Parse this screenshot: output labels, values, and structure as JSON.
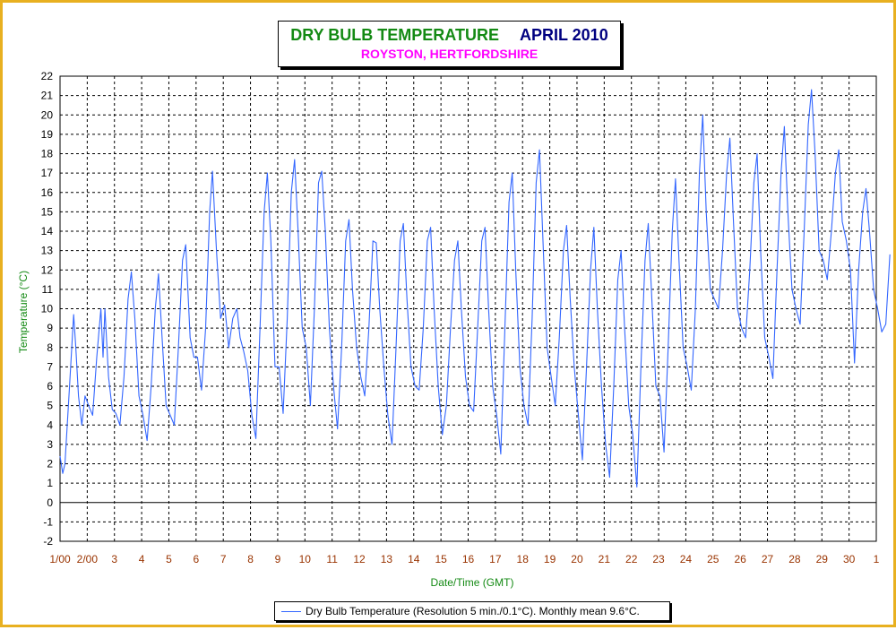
{
  "colors": {
    "frame": "#e8b020",
    "title": "#148a14",
    "period": "#000080",
    "subtitle": "#ff00ff",
    "axis_title": "#148a14",
    "x_tick": "#993300",
    "series": "#3366ff",
    "grid": "#000000"
  },
  "chart_data": {
    "type": "line",
    "title": "DRY BULB TEMPERATURE",
    "period": "APRIL 2010",
    "subtitle": "ROYSTON, HERTFORDSHIRE",
    "xlabel": "Date/Time (GMT)",
    "ylabel": "Temperature (°C)",
    "ylim": [
      -2,
      22
    ],
    "y_ticks": [
      -2,
      -1,
      0,
      1,
      2,
      3,
      4,
      5,
      6,
      7,
      8,
      9,
      10,
      11,
      12,
      13,
      14,
      15,
      16,
      17,
      18,
      19,
      20,
      21,
      22
    ],
    "x_ticks": [
      "1/00",
      "2/00",
      "3",
      "4",
      "5",
      "6",
      "7",
      "8",
      "9",
      "10",
      "11",
      "12",
      "13",
      "14",
      "15",
      "16",
      "17",
      "18",
      "19",
      "20",
      "21",
      "22",
      "23",
      "24",
      "25",
      "26",
      "27",
      "28",
      "29",
      "30",
      "1"
    ],
    "grid": true,
    "legend_position": "bottom-center",
    "series": [
      {
        "name": "Dry Bulb Temperature (Resolution 5 min./0.1°C). Monthly mean 9.6°C.",
        "x_unit": "days since 1 April 00:00 GMT",
        "points": [
          [
            0.0,
            2.4
          ],
          [
            0.1,
            1.5
          ],
          [
            0.18,
            2.0
          ],
          [
            0.35,
            6.0
          ],
          [
            0.5,
            9.7
          ],
          [
            0.58,
            8.0
          ],
          [
            0.68,
            5.5
          ],
          [
            0.8,
            4.0
          ],
          [
            0.92,
            5.5
          ],
          [
            1.05,
            5.0
          ],
          [
            1.2,
            4.5
          ],
          [
            1.35,
            7.5
          ],
          [
            1.5,
            10.0
          ],
          [
            1.58,
            7.5
          ],
          [
            1.65,
            10.0
          ],
          [
            1.78,
            6.5
          ],
          [
            1.92,
            4.8
          ],
          [
            2.05,
            4.6
          ],
          [
            2.2,
            4.0
          ],
          [
            2.35,
            6.5
          ],
          [
            2.5,
            10.5
          ],
          [
            2.62,
            11.9
          ],
          [
            2.75,
            9.5
          ],
          [
            2.9,
            5.5
          ],
          [
            3.05,
            4.5
          ],
          [
            3.2,
            3.2
          ],
          [
            3.35,
            6.0
          ],
          [
            3.5,
            10.0
          ],
          [
            3.62,
            11.8
          ],
          [
            3.75,
            8.5
          ],
          [
            3.9,
            5.0
          ],
          [
            4.05,
            4.5
          ],
          [
            4.2,
            4.0
          ],
          [
            4.35,
            8.0
          ],
          [
            4.5,
            12.5
          ],
          [
            4.62,
            13.3
          ],
          [
            4.78,
            8.5
          ],
          [
            4.92,
            7.5
          ],
          [
            5.05,
            7.5
          ],
          [
            5.2,
            5.8
          ],
          [
            5.35,
            9.0
          ],
          [
            5.5,
            15.0
          ],
          [
            5.6,
            17.1
          ],
          [
            5.75,
            13.0
          ],
          [
            5.9,
            9.5
          ],
          [
            6.05,
            10.2
          ],
          [
            6.2,
            8.0
          ],
          [
            6.35,
            9.5
          ],
          [
            6.5,
            10.0
          ],
          [
            6.62,
            8.5
          ],
          [
            6.75,
            7.8
          ],
          [
            6.9,
            6.8
          ],
          [
            7.05,
            4.5
          ],
          [
            7.2,
            3.3
          ],
          [
            7.35,
            9.0
          ],
          [
            7.5,
            15.0
          ],
          [
            7.62,
            17.0
          ],
          [
            7.75,
            13.5
          ],
          [
            7.9,
            7.0
          ],
          [
            8.05,
            7.0
          ],
          [
            8.2,
            4.6
          ],
          [
            8.35,
            9.5
          ],
          [
            8.5,
            16.0
          ],
          [
            8.62,
            17.7
          ],
          [
            8.75,
            14.0
          ],
          [
            8.9,
            9.0
          ],
          [
            9.05,
            8.0
          ],
          [
            9.2,
            5.0
          ],
          [
            9.35,
            10.0
          ],
          [
            9.5,
            16.5
          ],
          [
            9.62,
            17.1
          ],
          [
            9.75,
            14.0
          ],
          [
            9.9,
            9.0
          ],
          [
            10.05,
            6.0
          ],
          [
            10.2,
            3.8
          ],
          [
            10.35,
            8.0
          ],
          [
            10.5,
            13.5
          ],
          [
            10.62,
            14.6
          ],
          [
            10.75,
            11.0
          ],
          [
            10.9,
            8.0
          ],
          [
            11.05,
            6.5
          ],
          [
            11.2,
            5.5
          ],
          [
            11.35,
            9.0
          ],
          [
            11.5,
            13.5
          ],
          [
            11.62,
            13.4
          ],
          [
            11.75,
            10.0
          ],
          [
            11.9,
            7.0
          ],
          [
            12.05,
            4.5
          ],
          [
            12.2,
            3.0
          ],
          [
            12.35,
            8.0
          ],
          [
            12.5,
            13.5
          ],
          [
            12.62,
            14.4
          ],
          [
            12.75,
            10.5
          ],
          [
            12.9,
            7.0
          ],
          [
            13.05,
            6.0
          ],
          [
            13.2,
            5.8
          ],
          [
            13.35,
            9.0
          ],
          [
            13.5,
            13.5
          ],
          [
            13.62,
            14.2
          ],
          [
            13.75,
            10.0
          ],
          [
            13.9,
            6.0
          ],
          [
            14.05,
            3.5
          ],
          [
            14.2,
            5.0
          ],
          [
            14.35,
            9.0
          ],
          [
            14.5,
            12.5
          ],
          [
            14.62,
            13.5
          ],
          [
            14.75,
            10.0
          ],
          [
            14.9,
            6.5
          ],
          [
            15.05,
            5.0
          ],
          [
            15.2,
            4.7
          ],
          [
            15.35,
            9.0
          ],
          [
            15.5,
            13.5
          ],
          [
            15.62,
            14.2
          ],
          [
            15.75,
            10.0
          ],
          [
            15.9,
            6.0
          ],
          [
            16.05,
            4.5
          ],
          [
            16.2,
            2.5
          ],
          [
            16.35,
            9.0
          ],
          [
            16.5,
            15.5
          ],
          [
            16.62,
            17.0
          ],
          [
            16.75,
            12.0
          ],
          [
            16.9,
            7.0
          ],
          [
            17.05,
            5.0
          ],
          [
            17.2,
            4.0
          ],
          [
            17.35,
            9.5
          ],
          [
            17.5,
            16.5
          ],
          [
            17.62,
            18.2
          ],
          [
            17.75,
            13.5
          ],
          [
            17.9,
            8.0
          ],
          [
            18.05,
            6.5
          ],
          [
            18.2,
            5.0
          ],
          [
            18.35,
            8.5
          ],
          [
            18.5,
            13.0
          ],
          [
            18.62,
            14.3
          ],
          [
            18.75,
            10.5
          ],
          [
            18.9,
            7.0
          ],
          [
            19.05,
            4.5
          ],
          [
            19.2,
            2.2
          ],
          [
            19.35,
            7.0
          ],
          [
            19.5,
            12.0
          ],
          [
            19.62,
            14.2
          ],
          [
            19.75,
            10.0
          ],
          [
            19.9,
            6.0
          ],
          [
            20.05,
            3.0
          ],
          [
            20.2,
            1.3
          ],
          [
            20.35,
            6.0
          ],
          [
            20.5,
            11.5
          ],
          [
            20.62,
            13.0
          ],
          [
            20.75,
            9.0
          ],
          [
            20.9,
            5.0
          ],
          [
            21.05,
            3.5
          ],
          [
            21.2,
            0.8
          ],
          [
            21.35,
            7.0
          ],
          [
            21.5,
            12.5
          ],
          [
            21.62,
            14.4
          ],
          [
            21.75,
            10.5
          ],
          [
            21.9,
            6.0
          ],
          [
            22.05,
            5.5
          ],
          [
            22.2,
            2.6
          ],
          [
            22.35,
            8.0
          ],
          [
            22.5,
            14.0
          ],
          [
            22.62,
            16.7
          ],
          [
            22.75,
            12.5
          ],
          [
            22.9,
            8.0
          ],
          [
            23.05,
            7.0
          ],
          [
            23.2,
            5.8
          ],
          [
            23.35,
            10.0
          ],
          [
            23.5,
            17.0
          ],
          [
            23.62,
            20.0
          ],
          [
            23.75,
            15.0
          ],
          [
            23.9,
            11.0
          ],
          [
            24.05,
            10.5
          ],
          [
            24.2,
            10.0
          ],
          [
            24.35,
            13.0
          ],
          [
            24.5,
            17.0
          ],
          [
            24.62,
            18.8
          ],
          [
            24.75,
            14.5
          ],
          [
            24.9,
            10.0
          ],
          [
            25.05,
            9.0
          ],
          [
            25.2,
            8.5
          ],
          [
            25.35,
            12.0
          ],
          [
            25.5,
            16.5
          ],
          [
            25.62,
            18.0
          ],
          [
            25.75,
            13.0
          ],
          [
            25.9,
            8.5
          ],
          [
            26.05,
            7.5
          ],
          [
            26.2,
            6.4
          ],
          [
            26.35,
            12.0
          ],
          [
            26.5,
            17.0
          ],
          [
            26.62,
            19.4
          ],
          [
            26.75,
            15.0
          ],
          [
            26.9,
            11.0
          ],
          [
            27.05,
            10.0
          ],
          [
            27.2,
            9.2
          ],
          [
            27.35,
            14.0
          ],
          [
            27.5,
            19.5
          ],
          [
            27.62,
            21.3
          ],
          [
            27.75,
            18.0
          ],
          [
            27.9,
            13.0
          ],
          [
            28.05,
            12.5
          ],
          [
            28.2,
            11.5
          ],
          [
            28.35,
            14.0
          ],
          [
            28.5,
            17.0
          ],
          [
            28.62,
            18.2
          ],
          [
            28.75,
            14.5
          ],
          [
            28.9,
            13.5
          ],
          [
            29.05,
            12.0
          ],
          [
            29.2,
            7.2
          ],
          [
            29.35,
            12.0
          ],
          [
            29.5,
            15.0
          ],
          [
            29.62,
            16.2
          ],
          [
            29.75,
            14.0
          ],
          [
            29.9,
            11.0
          ],
          [
            30.05,
            10.0
          ],
          [
            30.2,
            8.8
          ],
          [
            30.35,
            9.2
          ],
          [
            30.5,
            12.8
          ]
        ]
      }
    ]
  }
}
